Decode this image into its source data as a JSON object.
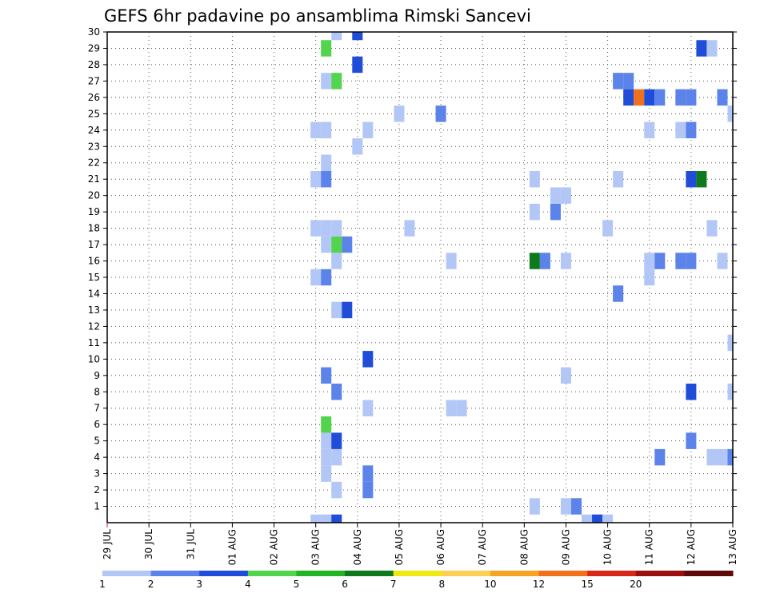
{
  "chart_data": {
    "type": "heatmap",
    "title": "GEFS 6hr padavine po ansamblima Rimski Sancevi",
    "xlabel": "",
    "ylabel": "",
    "x_ticks": [
      "29 JUL",
      "30 JUL",
      "31 JUL",
      "01 AUG",
      "02 AUG",
      "03 AUG",
      "04 AUG",
      "05 AUG",
      "06 AUG",
      "07 AUG",
      "08 AUG",
      "09 AUG",
      "10 AUG",
      "11 AUG",
      "12 AUG",
      "13 AUG"
    ],
    "x_range_steps_6h": [
      0,
      60
    ],
    "y_ticks": [
      1,
      2,
      3,
      4,
      5,
      6,
      7,
      8,
      9,
      10,
      11,
      12,
      13,
      14,
      15,
      16,
      17,
      18,
      19,
      20,
      21,
      22,
      23,
      24,
      25,
      26,
      27,
      28,
      29,
      30
    ],
    "y_range": [
      0,
      30
    ],
    "grid": true,
    "colorbar": {
      "position": "bottom",
      "labels": [
        "1",
        "2",
        "3",
        "4",
        "5",
        "6",
        "7",
        "8",
        "10",
        "12",
        "15",
        "20"
      ],
      "colors": [
        "#b3c7f7",
        "#5c83ea",
        "#1f4dd9",
        "#52d44c",
        "#22b422",
        "#0f7a1c",
        "#f0e811",
        "#fcce55",
        "#f7a323",
        "#f0701c",
        "#d82718",
        "#9b0f0f",
        "#5e0a0a"
      ]
    },
    "cells": [
      {
        "step": 20,
        "member": 0,
        "level": 1
      },
      {
        "step": 21,
        "member": 0,
        "level": 1
      },
      {
        "step": 22,
        "member": 0,
        "level": 3
      },
      {
        "step": 46,
        "member": 0,
        "level": 1
      },
      {
        "step": 47,
        "member": 0,
        "level": 3
      },
      {
        "step": 48,
        "member": 0,
        "level": 1
      },
      {
        "step": 41,
        "member": 1,
        "level": 1
      },
      {
        "step": 44,
        "member": 1,
        "level": 1
      },
      {
        "step": 45,
        "member": 1,
        "level": 2
      },
      {
        "step": 22,
        "member": 2,
        "level": 1
      },
      {
        "step": 25,
        "member": 2,
        "level": 2
      },
      {
        "step": 21,
        "member": 3,
        "level": 1
      },
      {
        "step": 25,
        "member": 3,
        "level": 2
      },
      {
        "step": 21,
        "member": 4,
        "level": 1
      },
      {
        "step": 22,
        "member": 4,
        "level": 1
      },
      {
        "step": 53,
        "member": 4,
        "level": 2
      },
      {
        "step": 58,
        "member": 4,
        "level": 1
      },
      {
        "step": 59,
        "member": 4,
        "level": 1
      },
      {
        "step": 60,
        "member": 4,
        "level": 2
      },
      {
        "step": 21,
        "member": 5,
        "level": 1
      },
      {
        "step": 22,
        "member": 5,
        "level": 3
      },
      {
        "step": 56,
        "member": 5,
        "level": 2
      },
      {
        "step": 21,
        "member": 6,
        "level": 4
      },
      {
        "step": 25,
        "member": 7,
        "level": 1
      },
      {
        "step": 33,
        "member": 7,
        "level": 1
      },
      {
        "step": 34,
        "member": 7,
        "level": 1
      },
      {
        "step": 22,
        "member": 8,
        "level": 2
      },
      {
        "step": 56,
        "member": 8,
        "level": 3
      },
      {
        "step": 60,
        "member": 8,
        "level": 1
      },
      {
        "step": 21,
        "member": 9,
        "level": 2
      },
      {
        "step": 44,
        "member": 9,
        "level": 1
      },
      {
        "step": 25,
        "member": 10,
        "level": 3
      },
      {
        "step": 60,
        "member": 11,
        "level": 1
      },
      {
        "step": 22,
        "member": 13,
        "level": 1
      },
      {
        "step": 23,
        "member": 13,
        "level": 3
      },
      {
        "step": 49,
        "member": 14,
        "level": 2
      },
      {
        "step": 20,
        "member": 15,
        "level": 1
      },
      {
        "step": 21,
        "member": 15,
        "level": 2
      },
      {
        "step": 52,
        "member": 15,
        "level": 1
      },
      {
        "step": 22,
        "member": 16,
        "level": 1
      },
      {
        "step": 33,
        "member": 16,
        "level": 1
      },
      {
        "step": 41,
        "member": 16,
        "level": 6
      },
      {
        "step": 42,
        "member": 16,
        "level": 2
      },
      {
        "step": 44,
        "member": 16,
        "level": 1
      },
      {
        "step": 52,
        "member": 16,
        "level": 1
      },
      {
        "step": 53,
        "member": 16,
        "level": 2
      },
      {
        "step": 55,
        "member": 16,
        "level": 2
      },
      {
        "step": 56,
        "member": 16,
        "level": 2
      },
      {
        "step": 59,
        "member": 16,
        "level": 1
      },
      {
        "step": 21,
        "member": 17,
        "level": 1
      },
      {
        "step": 22,
        "member": 17,
        "level": 4
      },
      {
        "step": 23,
        "member": 17,
        "level": 2
      },
      {
        "step": 20,
        "member": 18,
        "level": 1
      },
      {
        "step": 21,
        "member": 18,
        "level": 1
      },
      {
        "step": 22,
        "member": 18,
        "level": 1
      },
      {
        "step": 29,
        "member": 18,
        "level": 1
      },
      {
        "step": 48,
        "member": 18,
        "level": 1
      },
      {
        "step": 58,
        "member": 18,
        "level": 1
      },
      {
        "step": 41,
        "member": 19,
        "level": 1
      },
      {
        "step": 43,
        "member": 19,
        "level": 2
      },
      {
        "step": 43,
        "member": 20,
        "level": 1
      },
      {
        "step": 44,
        "member": 20,
        "level": 1
      },
      {
        "step": 20,
        "member": 21,
        "level": 1
      },
      {
        "step": 21,
        "member": 21,
        "level": 2
      },
      {
        "step": 41,
        "member": 21,
        "level": 1
      },
      {
        "step": 49,
        "member": 21,
        "level": 1
      },
      {
        "step": 56,
        "member": 21,
        "level": 3
      },
      {
        "step": 57,
        "member": 21,
        "level": 6
      },
      {
        "step": 21,
        "member": 22,
        "level": 1
      },
      {
        "step": 24,
        "member": 23,
        "level": 1
      },
      {
        "step": 20,
        "member": 24,
        "level": 1
      },
      {
        "step": 21,
        "member": 24,
        "level": 1
      },
      {
        "step": 25,
        "member": 24,
        "level": 1
      },
      {
        "step": 52,
        "member": 24,
        "level": 1
      },
      {
        "step": 55,
        "member": 24,
        "level": 1
      },
      {
        "step": 56,
        "member": 24,
        "level": 2
      },
      {
        "step": 28,
        "member": 25,
        "level": 1
      },
      {
        "step": 32,
        "member": 25,
        "level": 2
      },
      {
        "step": 60,
        "member": 25,
        "level": 1
      },
      {
        "step": 50,
        "member": 26,
        "level": 3
      },
      {
        "step": 51,
        "member": 26,
        "level": 10
      },
      {
        "step": 52,
        "member": 26,
        "level": 3
      },
      {
        "step": 53,
        "member": 26,
        "level": 2
      },
      {
        "step": 55,
        "member": 26,
        "level": 2
      },
      {
        "step": 56,
        "member": 26,
        "level": 2
      },
      {
        "step": 59,
        "member": 26,
        "level": 2
      },
      {
        "step": 21,
        "member": 27,
        "level": 1
      },
      {
        "step": 22,
        "member": 27,
        "level": 4
      },
      {
        "step": 49,
        "member": 27,
        "level": 2
      },
      {
        "step": 50,
        "member": 27,
        "level": 2
      },
      {
        "step": 24,
        "member": 28,
        "level": 3
      },
      {
        "step": 21,
        "member": 29,
        "level": 4
      },
      {
        "step": 57,
        "member": 29,
        "level": 3
      },
      {
        "step": 58,
        "member": 29,
        "level": 1
      },
      {
        "step": 22,
        "member": 30,
        "level": 1
      },
      {
        "step": 24,
        "member": 30,
        "level": 3
      }
    ]
  }
}
